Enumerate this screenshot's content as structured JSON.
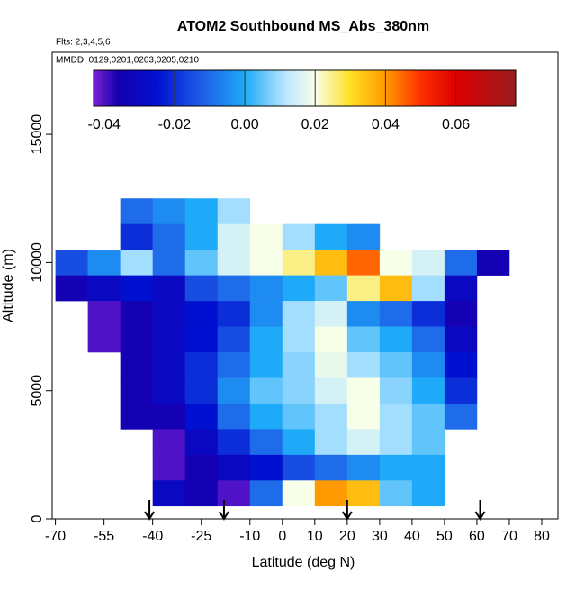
{
  "chart_data": {
    "type": "heatmap",
    "title": "ATOM2 Southbound MS_Abs_380nm",
    "subtitle": "Flts: 2,3,4,5,6",
    "annotation": "MMDD: 0129,0201,0203,0205,0210",
    "xlabel": "Latitude (deg N)",
    "ylabel": "Altitude (m)",
    "xlim": [
      -71,
      85
    ],
    "ylim": [
      0,
      18200
    ],
    "xticks": [
      -70,
      -55,
      -40,
      -25,
      -10,
      0,
      10,
      20,
      30,
      40,
      50,
      60,
      70,
      80
    ],
    "yticks": [
      0,
      5000,
      10000,
      15000
    ],
    "x": [
      -65,
      -55,
      -45,
      -35,
      -25,
      -15,
      -5,
      5,
      15,
      25,
      35,
      45,
      55,
      65
    ],
    "y": [
      12000,
      11000,
      10000,
      9000,
      8000,
      7000,
      6000,
      5000,
      4000,
      3000,
      2000,
      1000
    ],
    "values": [
      [
        null,
        null,
        -0.01,
        -0.005,
        0.0,
        0.01,
        null,
        null,
        null,
        null,
        null,
        null,
        null,
        null
      ],
      [
        null,
        null,
        -0.02,
        -0.01,
        0.0,
        0.015,
        0.02,
        0.01,
        0.0,
        -0.005,
        null,
        null,
        null,
        null
      ],
      [
        -0.015,
        -0.005,
        0.01,
        -0.01,
        0.005,
        0.015,
        0.02,
        0.025,
        0.035,
        0.045,
        0.02,
        0.015,
        -0.01,
        -0.035
      ],
      [
        -0.035,
        -0.03,
        -0.025,
        -0.03,
        -0.015,
        -0.01,
        -0.005,
        0.0,
        0.005,
        0.025,
        0.035,
        0.01,
        -0.03,
        null
      ],
      [
        null,
        -0.04,
        -0.035,
        -0.03,
        -0.025,
        -0.02,
        -0.005,
        0.01,
        0.015,
        -0.005,
        -0.01,
        -0.02,
        -0.035,
        null
      ],
      [
        null,
        -0.04,
        -0.035,
        -0.03,
        -0.025,
        -0.015,
        0.0,
        0.01,
        0.02,
        0.005,
        0.0,
        -0.01,
        -0.03,
        null
      ],
      [
        null,
        null,
        -0.035,
        -0.03,
        -0.02,
        -0.01,
        0.0,
        0.008,
        0.018,
        0.01,
        0.005,
        -0.005,
        -0.025,
        null
      ],
      [
        null,
        null,
        -0.035,
        -0.03,
        -0.02,
        -0.005,
        0.005,
        0.008,
        0.015,
        0.02,
        0.008,
        0.0,
        -0.02,
        null
      ],
      [
        null,
        null,
        -0.035,
        -0.035,
        -0.025,
        -0.01,
        0.0,
        0.005,
        0.01,
        0.02,
        0.01,
        0.005,
        -0.01,
        null
      ],
      [
        null,
        null,
        null,
        -0.04,
        -0.03,
        -0.02,
        -0.01,
        0.0,
        0.01,
        0.015,
        0.01,
        0.005,
        null,
        null
      ],
      [
        null,
        null,
        null,
        -0.04,
        -0.035,
        -0.03,
        -0.025,
        -0.015,
        -0.01,
        -0.005,
        0.0,
        0.0,
        null,
        null
      ],
      [
        null,
        null,
        null,
        -0.03,
        -0.035,
        -0.04,
        -0.01,
        0.02,
        0.04,
        0.035,
        0.005,
        0.0,
        null,
        null
      ]
    ],
    "clim": [
      -0.043,
      0.077
    ],
    "cticks": [
      -0.04,
      -0.02,
      {
        "value": 0,
        "label": "0.00"
      },
      0.02,
      0.04,
      0.06
    ],
    "colorscale": [
      [
        -0.043,
        "#7a20d6"
      ],
      [
        -0.036,
        "#1500b0"
      ],
      [
        -0.025,
        "#0010d0"
      ],
      [
        -0.012,
        "#1f5fe8"
      ],
      [
        0.0,
        "#1eaaf8"
      ],
      [
        0.012,
        "#bfe8ff"
      ],
      [
        0.02,
        "#f7ffe8"
      ],
      [
        0.03,
        "#ffe022"
      ],
      [
        0.04,
        "#ff9a00"
      ],
      [
        0.05,
        "#ff3000"
      ],
      [
        0.06,
        "#dc0000"
      ],
      [
        0.077,
        "#9a1e1e"
      ]
    ],
    "arrows_x": [
      -41,
      -18,
      20,
      61
    ]
  }
}
